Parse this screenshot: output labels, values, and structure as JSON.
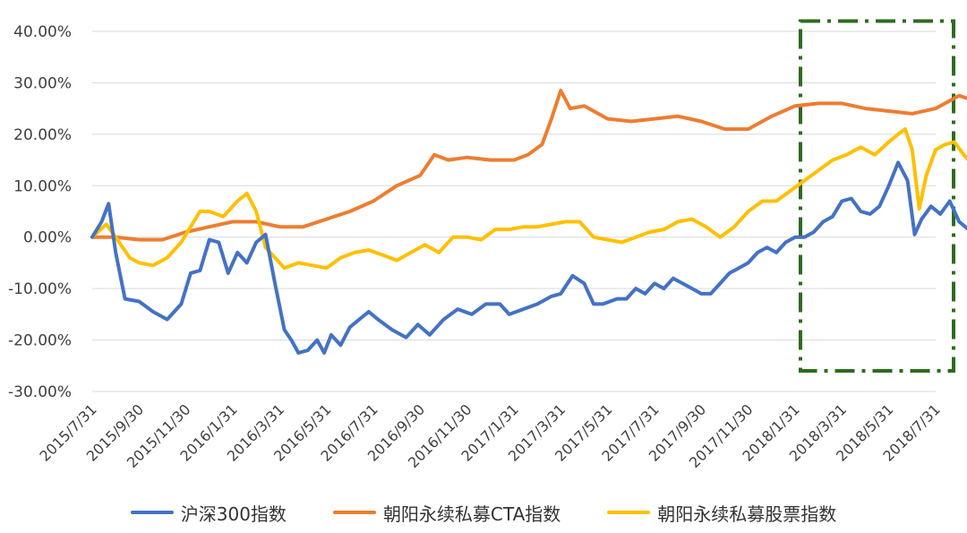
{
  "chart_data": {
    "type": "line",
    "title": "",
    "xlabel": "",
    "ylabel": "",
    "ylim": [
      -30,
      40
    ],
    "y_ticks": [
      40,
      30,
      20,
      10,
      0,
      -10,
      -20,
      -30
    ],
    "y_tick_labels": [
      "40.00%",
      "30.00%",
      "20.00%",
      "10.00%",
      "0.00%",
      "-10.00%",
      "-20.00%",
      "-30.00%"
    ],
    "grid": "horizontal",
    "legend_position": "bottom",
    "x_tick_labels": [
      "2015/7/31",
      "2015/9/30",
      "2015/11/30",
      "2016/1/31",
      "2016/3/31",
      "2016/5/31",
      "2016/7/31",
      "2016/9/30",
      "2016/11/30",
      "2017/1/31",
      "2017/3/31",
      "2017/5/31",
      "2017/7/31",
      "2017/9/30",
      "2017/11/30",
      "2018/1/31",
      "2018/3/31",
      "2018/5/31",
      "2018/7/31"
    ],
    "highlight_box": {
      "from": "2018/1/31",
      "to": "2018/7/31",
      "ymin": -26,
      "ymax": 42,
      "color": "#2E6B1F",
      "style": "dash-dot"
    },
    "series": [
      {
        "name": "沪深300指数",
        "color": "#4472C4",
        "points": [
          [
            0,
            0
          ],
          [
            0.2,
            3
          ],
          [
            0.35,
            6.5
          ],
          [
            0.5,
            -3
          ],
          [
            0.7,
            -12
          ],
          [
            1,
            -12.5
          ],
          [
            1.3,
            -14.5
          ],
          [
            1.6,
            -16
          ],
          [
            1.9,
            -13
          ],
          [
            2.1,
            -7
          ],
          [
            2.3,
            -6.5
          ],
          [
            2.5,
            -0.5
          ],
          [
            2.7,
            -1
          ],
          [
            2.9,
            -7
          ],
          [
            3.1,
            -3
          ],
          [
            3.3,
            -5
          ],
          [
            3.5,
            -1
          ],
          [
            3.7,
            0.5
          ],
          [
            3.9,
            -9
          ],
          [
            4.1,
            -18
          ],
          [
            4.25,
            -20
          ],
          [
            4.4,
            -22.5
          ],
          [
            4.6,
            -22
          ],
          [
            4.8,
            -20
          ],
          [
            4.95,
            -22.5
          ],
          [
            5.1,
            -19
          ],
          [
            5.3,
            -21
          ],
          [
            5.5,
            -17.5
          ],
          [
            5.7,
            -16
          ],
          [
            5.9,
            -14.5
          ],
          [
            6.1,
            -16
          ],
          [
            6.4,
            -18
          ],
          [
            6.7,
            -19.5
          ],
          [
            6.95,
            -17
          ],
          [
            7.2,
            -19
          ],
          [
            7.5,
            -16
          ],
          [
            7.8,
            -14
          ],
          [
            8.1,
            -15
          ],
          [
            8.4,
            -13
          ],
          [
            8.7,
            -13
          ],
          [
            8.9,
            -15
          ],
          [
            9.2,
            -14
          ],
          [
            9.5,
            -13
          ],
          [
            9.8,
            -11.5
          ],
          [
            10.0,
            -11
          ],
          [
            10.25,
            -7.5
          ],
          [
            10.5,
            -9
          ],
          [
            10.7,
            -13
          ],
          [
            10.9,
            -13
          ],
          [
            11.2,
            -12
          ],
          [
            11.4,
            -12
          ],
          [
            11.6,
            -10
          ],
          [
            11.8,
            -11
          ],
          [
            12.0,
            -9
          ],
          [
            12.2,
            -10
          ],
          [
            12.4,
            -8
          ],
          [
            12.6,
            -9
          ],
          [
            12.8,
            -10
          ],
          [
            13.0,
            -11
          ],
          [
            13.2,
            -11
          ],
          [
            13.4,
            -9
          ],
          [
            13.6,
            -7
          ],
          [
            13.8,
            -6
          ],
          [
            14.0,
            -5
          ],
          [
            14.2,
            -3
          ],
          [
            14.4,
            -2
          ],
          [
            14.6,
            -3
          ],
          [
            14.8,
            -1
          ],
          [
            15.0,
            0
          ],
          [
            15.2,
            0
          ],
          [
            15.4,
            1
          ],
          [
            15.6,
            3
          ],
          [
            15.8,
            4
          ],
          [
            16.0,
            7
          ],
          [
            16.2,
            7.5
          ],
          [
            16.4,
            5
          ],
          [
            16.6,
            4.5
          ],
          [
            16.8,
            6
          ],
          [
            17.0,
            10
          ],
          [
            17.2,
            14.5
          ],
          [
            17.4,
            11
          ],
          [
            17.55,
            0.5
          ],
          [
            17.7,
            3.5
          ],
          [
            17.9,
            6
          ],
          [
            18.1,
            4.5
          ],
          [
            18.3,
            7
          ],
          [
            18.5,
            3
          ],
          [
            18.7,
            1.5
          ],
          [
            18.9,
            1
          ],
          [
            19.1,
            -1.5
          ],
          [
            19.3,
            -1
          ],
          [
            19.5,
            2
          ],
          [
            19.7,
            -1
          ],
          [
            19.9,
            -1.5
          ],
          [
            20.1,
            -2
          ],
          [
            20.3,
            -7
          ],
          [
            20.5,
            -11.5
          ],
          [
            20.65,
            -9
          ],
          [
            20.8,
            -8
          ],
          [
            21.0,
            -7.5
          ],
          [
            21.15,
            -12.5
          ],
          [
            21.3,
            -10.5
          ]
        ]
      },
      {
        "name": "朝阳永续私募CTA指数",
        "color": "#ED7D31",
        "points": [
          [
            0,
            0
          ],
          [
            0.5,
            0
          ],
          [
            1,
            -0.5
          ],
          [
            1.5,
            -0.5
          ],
          [
            2,
            1
          ],
          [
            2.5,
            2
          ],
          [
            3,
            3
          ],
          [
            3.5,
            3
          ],
          [
            4,
            2
          ],
          [
            4.5,
            2
          ],
          [
            5,
            3.5
          ],
          [
            5.5,
            5
          ],
          [
            6,
            7
          ],
          [
            6.5,
            10
          ],
          [
            7,
            12
          ],
          [
            7.3,
            16
          ],
          [
            7.6,
            15
          ],
          [
            8,
            15.5
          ],
          [
            8.5,
            15
          ],
          [
            9,
            15
          ],
          [
            9.3,
            16
          ],
          [
            9.6,
            18
          ],
          [
            9.8,
            23
          ],
          [
            10.0,
            28.5
          ],
          [
            10.2,
            25
          ],
          [
            10.5,
            25.5
          ],
          [
            11,
            23
          ],
          [
            11.5,
            22.5
          ],
          [
            12,
            23
          ],
          [
            12.5,
            23.5
          ],
          [
            13,
            22.5
          ],
          [
            13.5,
            21
          ],
          [
            14,
            21
          ],
          [
            14.5,
            23.5
          ],
          [
            15,
            25.5
          ],
          [
            15.5,
            26
          ],
          [
            16,
            26
          ],
          [
            16.5,
            25
          ],
          [
            17,
            24.5
          ],
          [
            17.5,
            24
          ],
          [
            18,
            25
          ],
          [
            18.5,
            27.5
          ],
          [
            19,
            26
          ],
          [
            19.5,
            26.5
          ],
          [
            20,
            26.5
          ],
          [
            20.5,
            25
          ],
          [
            21,
            26
          ],
          [
            21.3,
            28.5
          ]
        ]
      },
      {
        "name": "朝阳永续私募股票指数",
        "color": "#FFC000",
        "points": [
          [
            0,
            0
          ],
          [
            0.3,
            2.5
          ],
          [
            0.5,
            0
          ],
          [
            0.8,
            -4
          ],
          [
            1,
            -5
          ],
          [
            1.3,
            -5.5
          ],
          [
            1.6,
            -4
          ],
          [
            1.9,
            -1
          ],
          [
            2.1,
            2
          ],
          [
            2.3,
            5
          ],
          [
            2.5,
            5
          ],
          [
            2.8,
            4
          ],
          [
            3.1,
            7
          ],
          [
            3.3,
            8.5
          ],
          [
            3.5,
            5
          ],
          [
            3.7,
            -2
          ],
          [
            3.9,
            -4
          ],
          [
            4.1,
            -6
          ],
          [
            4.4,
            -5
          ],
          [
            4.7,
            -5.5
          ],
          [
            5,
            -6
          ],
          [
            5.3,
            -4
          ],
          [
            5.6,
            -3
          ],
          [
            5.9,
            -2.5
          ],
          [
            6.2,
            -3.5
          ],
          [
            6.5,
            -4.5
          ],
          [
            6.8,
            -3
          ],
          [
            7.1,
            -1.5
          ],
          [
            7.4,
            -3
          ],
          [
            7.7,
            0
          ],
          [
            8,
            0
          ],
          [
            8.3,
            -0.5
          ],
          [
            8.6,
            1.5
          ],
          [
            8.9,
            1.5
          ],
          [
            9.2,
            2
          ],
          [
            9.5,
            2
          ],
          [
            9.8,
            2.5
          ],
          [
            10.1,
            3
          ],
          [
            10.4,
            3
          ],
          [
            10.7,
            0
          ],
          [
            11,
            -0.5
          ],
          [
            11.3,
            -1
          ],
          [
            11.6,
            0
          ],
          [
            11.9,
            1
          ],
          [
            12.2,
            1.5
          ],
          [
            12.5,
            3
          ],
          [
            12.8,
            3.5
          ],
          [
            13.1,
            2
          ],
          [
            13.4,
            0
          ],
          [
            13.7,
            2
          ],
          [
            14,
            5
          ],
          [
            14.3,
            7
          ],
          [
            14.6,
            7
          ],
          [
            14.9,
            9
          ],
          [
            15.2,
            11
          ],
          [
            15.5,
            13
          ],
          [
            15.8,
            15
          ],
          [
            16.1,
            16
          ],
          [
            16.4,
            17.5
          ],
          [
            16.7,
            16
          ],
          [
            17.0,
            18.5
          ],
          [
            17.2,
            20
          ],
          [
            17.35,
            21
          ],
          [
            17.5,
            17
          ],
          [
            17.65,
            5.5
          ],
          [
            17.8,
            12
          ],
          [
            18.0,
            17
          ],
          [
            18.2,
            18
          ],
          [
            18.4,
            18.5
          ],
          [
            18.6,
            16
          ],
          [
            18.8,
            14
          ],
          [
            19.0,
            13
          ],
          [
            19.2,
            12
          ],
          [
            19.4,
            13
          ],
          [
            19.6,
            16
          ],
          [
            19.8,
            15.5
          ],
          [
            20.0,
            14.5
          ],
          [
            20.2,
            11
          ],
          [
            20.4,
            7
          ],
          [
            20.6,
            9
          ],
          [
            20.8,
            9
          ],
          [
            21.0,
            8.5
          ],
          [
            21.1,
            4.5
          ],
          [
            21.3,
            6
          ]
        ]
      }
    ]
  }
}
